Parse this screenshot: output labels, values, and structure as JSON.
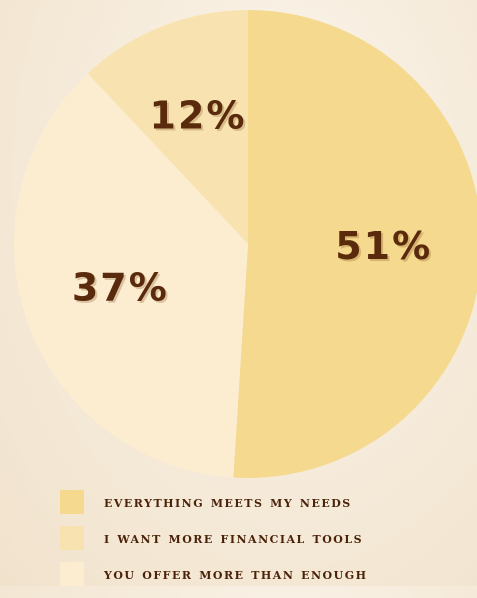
{
  "chart_data": {
    "type": "pie",
    "title": "",
    "slices": [
      {
        "name": "EVERYTHING MEETS MY NEEDS",
        "value": 51,
        "label": "51%",
        "color": "#f5d98e"
      },
      {
        "name": "YOU OFFER MORE THAN ENOUGH",
        "value": 37,
        "label": "37%",
        "color": "#fcecd0"
      },
      {
        "name": "I WANT MORE FINANCIAL TOOLS",
        "value": 12,
        "label": "12%",
        "color": "#f8e3b0"
      }
    ],
    "start_angle_deg": 0,
    "direction": "clockwise",
    "legend_position": "bottom-left",
    "legend": [
      {
        "label": "EVERYTHING MEETS MY NEEDS",
        "color": "#f5d98e"
      },
      {
        "label": "I WANT MORE FINANCIAL TOOLS",
        "color": "#f8e3b0"
      },
      {
        "label": "YOU OFFER MORE THAN ENOUGH",
        "color": "#fcecd0"
      }
    ],
    "label_color": "#5a2a0c"
  }
}
